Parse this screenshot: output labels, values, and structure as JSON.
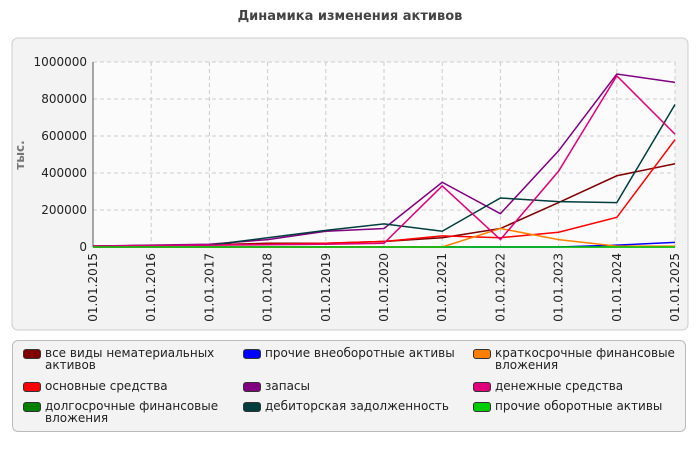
{
  "chart_data": {
    "type": "line",
    "title": "Динамика изменения активов",
    "y_label": "тыс.",
    "categories": [
      "01.01.2015",
      "01.01.2016",
      "01.01.2017",
      "01.01.2018",
      "01.01.2019",
      "01.01.2020",
      "01.01.2021",
      "01.01.2022",
      "01.01.2023",
      "01.01.2024",
      "01.01.2025"
    ],
    "ylim": [
      0,
      1000000
    ],
    "yticks": [
      0,
      200000,
      400000,
      600000,
      800000,
      1000000
    ],
    "grid": true,
    "series": [
      {
        "name": "все виды нематериальных активов",
        "color": "#800000",
        "values": [
          5000,
          8000,
          12000,
          20000,
          20000,
          30000,
          50000,
          100000,
          240000,
          385000,
          450000
        ]
      },
      {
        "name": "основные средства",
        "color": "#ff0000",
        "values": [
          5000,
          8000,
          10000,
          15000,
          20000,
          30000,
          60000,
          50000,
          80000,
          160000,
          580000
        ]
      },
      {
        "name": "долгосрочные финансовые вложения",
        "color": "#008000",
        "values": [
          0,
          0,
          0,
          0,
          0,
          0,
          0,
          0,
          0,
          0,
          0
        ]
      },
      {
        "name": "прочие внеоборотные активы",
        "color": "#0000ff",
        "values": [
          0,
          0,
          0,
          0,
          0,
          0,
          0,
          0,
          0,
          10000,
          25000
        ]
      },
      {
        "name": "запасы",
        "color": "#800080",
        "values": [
          5000,
          10000,
          15000,
          40000,
          85000,
          100000,
          350000,
          180000,
          520000,
          935000,
          890000
        ]
      },
      {
        "name": "дебиторская задолженность",
        "color": "#003d3d",
        "values": [
          5000,
          8000,
          10000,
          50000,
          90000,
          125000,
          85000,
          265000,
          245000,
          240000,
          770000
        ]
      },
      {
        "name": "краткосрочные финансовые вложения",
        "color": "#ff8000",
        "values": [
          0,
          0,
          0,
          0,
          0,
          0,
          0,
          100000,
          40000,
          5000,
          5000
        ]
      },
      {
        "name": "денежные средства",
        "color": "#e0007a",
        "values": [
          5000,
          8000,
          10000,
          12000,
          15000,
          20000,
          330000,
          40000,
          410000,
          925000,
          610000
        ]
      },
      {
        "name": "прочие оборотные активы",
        "color": "#00cc00",
        "values": [
          0,
          0,
          0,
          0,
          0,
          0,
          0,
          0,
          0,
          0,
          0
        ]
      }
    ]
  }
}
